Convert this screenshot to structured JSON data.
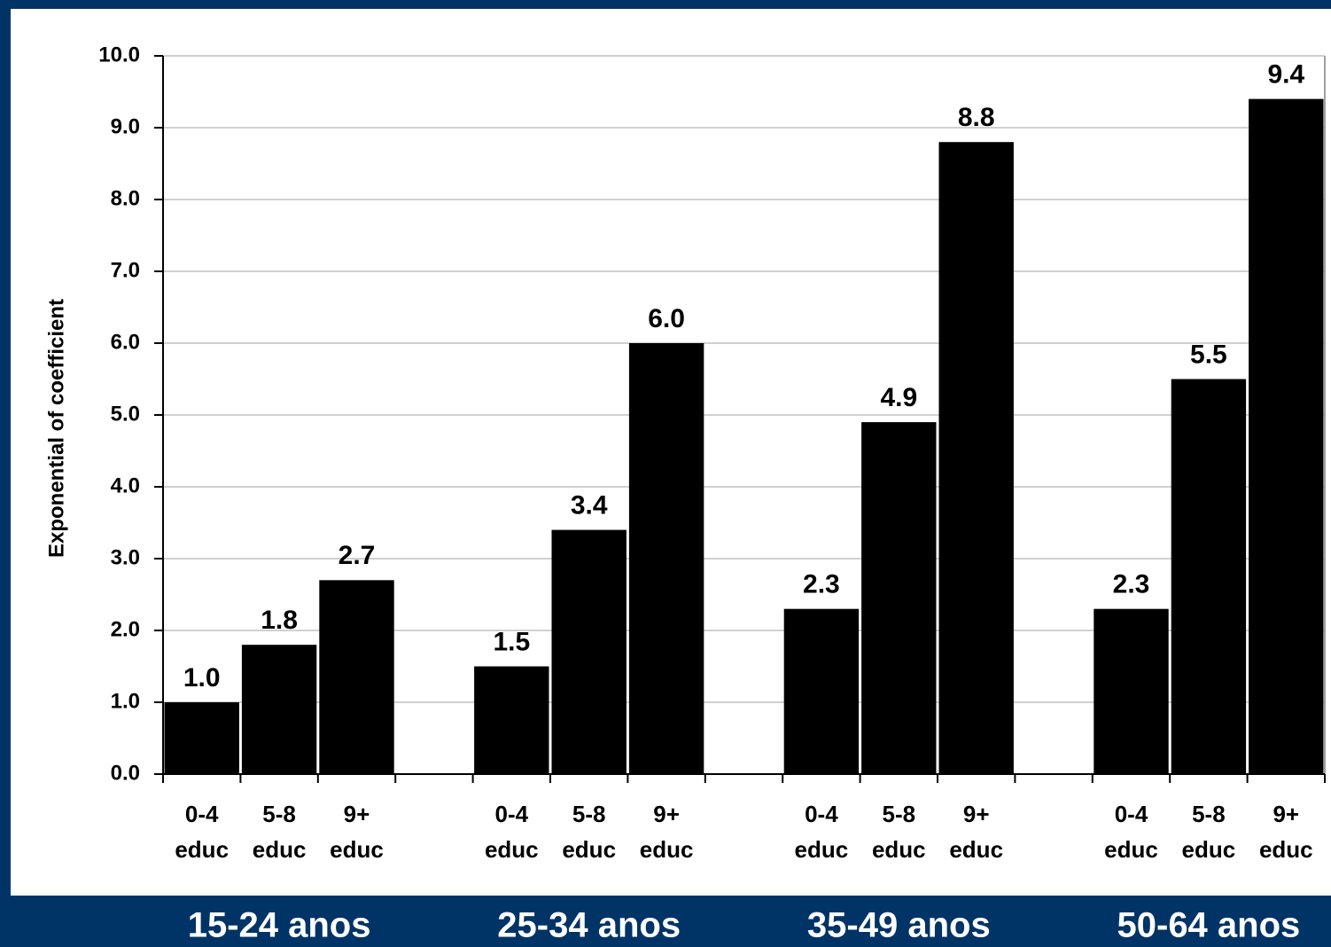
{
  "chart_data": {
    "type": "bar",
    "y_label": "Exponential of coefficient",
    "categories": [
      "0-4 educ",
      "5-8 educ",
      "9+ educ",
      null,
      "0-4 educ",
      "5-8 educ",
      "9+ educ",
      null,
      "0-4 educ",
      "5-8 educ",
      "9+ educ",
      null,
      "0-4 educ",
      "5-8 educ",
      "9+ educ"
    ],
    "values": [
      1.0,
      1.8,
      2.7,
      null,
      1.5,
      3.4,
      6.0,
      null,
      2.3,
      4.9,
      8.8,
      null,
      2.3,
      5.5,
      9.4
    ],
    "value_labels": [
      "1.0",
      "1.8",
      "2.7",
      null,
      "1.5",
      "3.4",
      "6.0",
      null,
      "2.3",
      "4.9",
      "8.8",
      null,
      "2.3",
      "5.5",
      "9.4"
    ],
    "groups": [
      "15-24 anos",
      "25-34 anos",
      "35-49 anos",
      "50-64 anos"
    ],
    "color": "#000000",
    "ylim": [
      0,
      10
    ],
    "yticks": [
      {
        "value": 0,
        "label": "0.0"
      },
      {
        "value": 1,
        "label": "1.0"
      },
      {
        "value": 2,
        "label": "2.0"
      },
      {
        "value": 3,
        "label": "3.0"
      },
      {
        "value": 4,
        "label": "4.0"
      },
      {
        "value": 5,
        "label": "5.0"
      },
      {
        "value": 6,
        "label": "6.0"
      },
      {
        "value": 7,
        "label": "7.0"
      },
      {
        "value": 8,
        "label": "8.0"
      },
      {
        "value": 9,
        "label": "9.0"
      },
      {
        "value": 10,
        "label": "10.0"
      }
    ],
    "grid": true
  }
}
